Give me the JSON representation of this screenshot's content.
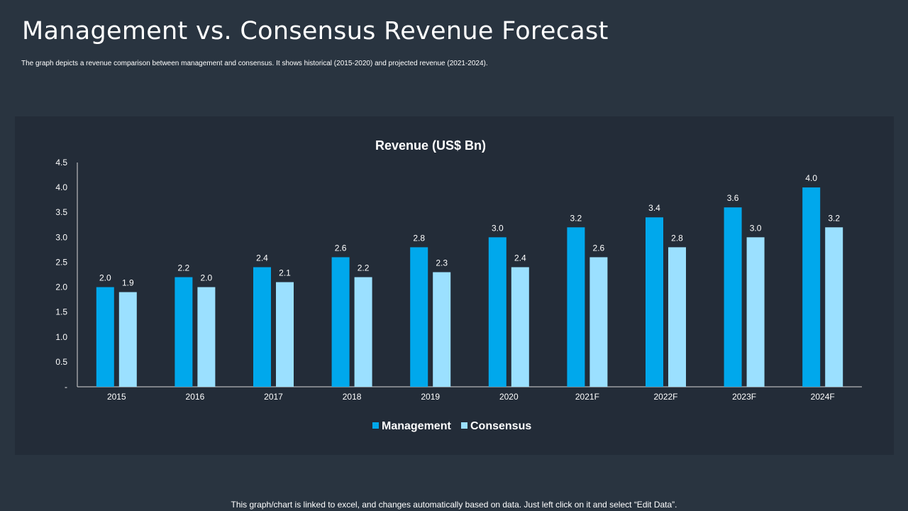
{
  "header": {
    "title": "Management vs. Consensus Revenue Forecast",
    "subtitle": "The graph depicts a revenue comparison between management and consensus. It shows historical (2015-2020) and projected revenue (2021-2024)."
  },
  "footer": {
    "note": "This graph/chart is linked to excel, and changes automatically based on data. Just left click on it and select “Edit Data”."
  },
  "colors": {
    "management": "#00a8ec",
    "consensus": "#9be0ff",
    "axis": "#d9d9d9",
    "label": "#ffffff"
  },
  "chart_data": {
    "type": "bar",
    "title": "Revenue (US$ Bn)",
    "xlabel": "",
    "ylabel": "",
    "ylim": [
      0,
      4.5
    ],
    "yticks": [
      0,
      0.5,
      1.0,
      1.5,
      2.0,
      2.5,
      3.0,
      3.5,
      4.0,
      4.5
    ],
    "ytick_labels": [
      "-",
      "0.5",
      "1.0",
      "1.5",
      "2.0",
      "2.5",
      "3.0",
      "3.5",
      "4.0",
      "4.5"
    ],
    "grid": false,
    "legend_position": "bottom",
    "categories": [
      "2015",
      "2016",
      "2017",
      "2018",
      "2019",
      "2020",
      "2021F",
      "2022F",
      "2023F",
      "2024F"
    ],
    "series": [
      {
        "name": "Management",
        "values": [
          2.0,
          2.2,
          2.4,
          2.6,
          2.8,
          3.0,
          3.2,
          3.4,
          3.6,
          4.0
        ]
      },
      {
        "name": "Consensus",
        "values": [
          1.9,
          2.0,
          2.1,
          2.2,
          2.3,
          2.4,
          2.6,
          2.8,
          3.0,
          3.2
        ]
      }
    ]
  }
}
